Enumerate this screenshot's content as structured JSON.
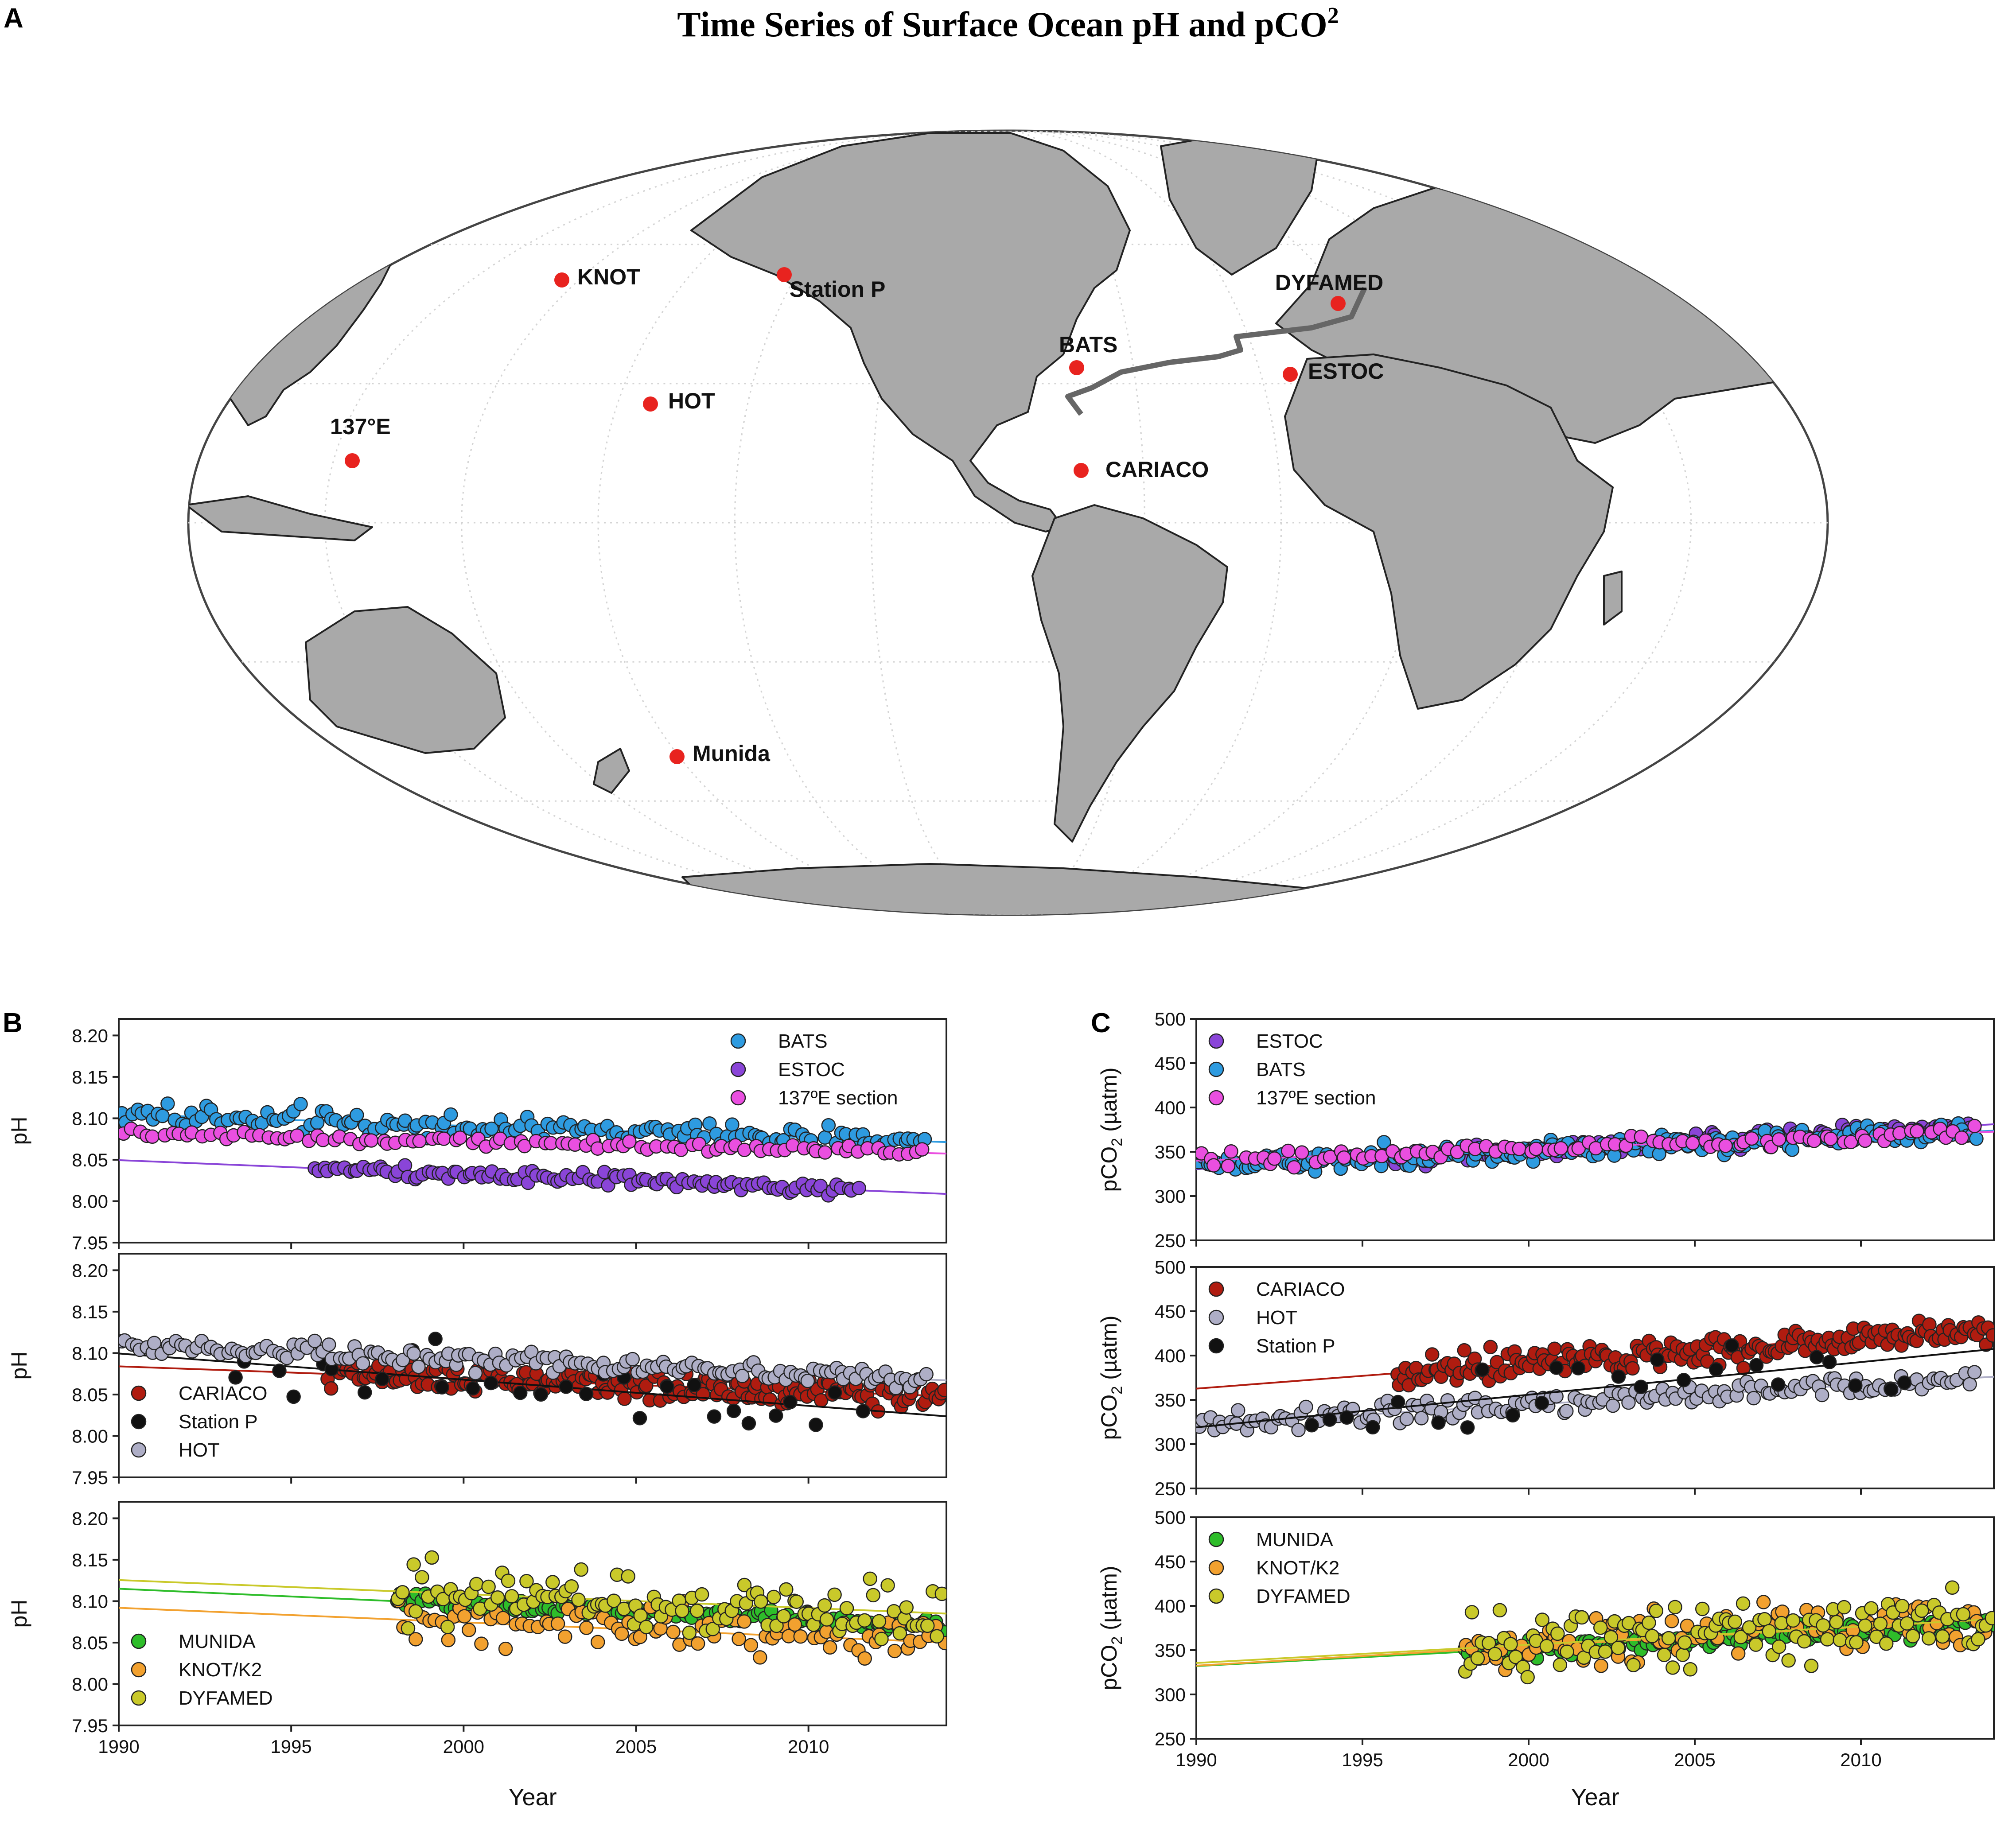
{
  "figure": {
    "title": "Time Series of Surface Ocean pH and pCO",
    "title_superscript": "2",
    "panel_labels": {
      "a": "A",
      "b": "B",
      "c": "C"
    }
  },
  "map": {
    "land_color": "#a9a9a9",
    "station_color": "#e8231f",
    "stations": [
      {
        "name": "KNOT",
        "lon": 155,
        "lat": 44
      },
      {
        "name": "Station P",
        "lon": -145,
        "lat": 50
      },
      {
        "name": "DYFAMED",
        "lon": 7.9,
        "lat": 43.4
      },
      {
        "name": "BATS",
        "lon": -64,
        "lat": 31.7
      },
      {
        "name": "HOT",
        "lon": -158,
        "lat": 22.75
      },
      {
        "name": "ESTOC",
        "lon": -15.5,
        "lat": 29.2
      },
      {
        "name": "137°E",
        "lon": 137,
        "lat": 15
      },
      {
        "name": "CARIACO",
        "lon": -64.7,
        "lat": 10.5
      },
      {
        "name": "Munida",
        "lon": 171,
        "lat": -45.8
      }
    ]
  },
  "colors": {
    "BATS": "#2e9be0",
    "ESTOC": "#8a45d8",
    "137E": "#ea4fe0",
    "CARIACO": "#b01c10",
    "StationP": "#111111",
    "HOT": "#aeaec6",
    "MUNIDA": "#2ebd2a",
    "KNOT": "#f2a12f",
    "DYFAMED": "#c9c92a"
  },
  "axis_labels": {
    "ph": "pH",
    "pco2": "pCO",
    "pco2_sub": "2",
    "pco2_unit": " (µatm)",
    "year": "Year"
  },
  "chart_data": [
    {
      "panel": "B",
      "type": "scatter",
      "xlabel": "Year",
      "ylabel": "pH",
      "xlim": [
        1990,
        2014
      ],
      "xticks": [
        1990,
        1995,
        2000,
        2005,
        2010
      ],
      "subplots": [
        {
          "ylim": [
            7.95,
            8.22
          ],
          "yticks": [
            7.95,
            8.0,
            8.05,
            8.1,
            8.15,
            8.2
          ],
          "legend_position": "top-right",
          "series": [
            {
              "name": "BATS",
              "color_key": "BATS",
              "x_range": [
                1990,
                2013.5
              ],
              "trend": [
                8.105,
                8.072
              ],
              "noise": 0.013,
              "n": 150
            },
            {
              "name": "ESTOC",
              "color_key": "ESTOC",
              "x_range": [
                1995.6,
                2011.5
              ],
              "trend": [
                8.04,
                8.013
              ],
              "noise": 0.007,
              "n": 110
            },
            {
              "name": "137ºE section",
              "color_key": "137E",
              "x_range": [
                1990,
                2013.5
              ],
              "trend": [
                8.083,
                8.058
              ],
              "noise": 0.007,
              "n": 100
            }
          ]
        },
        {
          "ylim": [
            7.95,
            8.22
          ],
          "yticks": [
            7.95,
            8.0,
            8.05,
            8.1,
            8.15,
            8.2
          ],
          "legend_position": "bottom-left",
          "series": [
            {
              "name": "CARIACO",
              "color_key": "CARIACO",
              "x_range": [
                1996,
                2014
              ],
              "trend": [
                8.075,
                8.048
              ],
              "noise": 0.016,
              "n": 190
            },
            {
              "name": "Station P",
              "color_key": "StationP",
              "x_range": [
                1993,
                2012
              ],
              "trend": [
                8.09,
                8.03
              ],
              "noise": 0.035,
              "n": 30
            },
            {
              "name": "HOT",
              "color_key": "HOT",
              "x_range": [
                1990,
                2013.5
              ],
              "trend": [
                8.112,
                8.068
              ],
              "noise": 0.011,
              "n": 160
            }
          ]
        },
        {
          "ylim": [
            7.95,
            8.22
          ],
          "yticks": [
            7.95,
            8.0,
            8.05,
            8.1,
            8.15,
            8.2
          ],
          "legend_position": "bottom-left",
          "series": [
            {
              "name": "MUNIDA",
              "color_key": "MUNIDA",
              "x_range": [
                1998,
                2014
              ],
              "trend": [
                8.1,
                8.07
              ],
              "noise": 0.008,
              "n": 130
            },
            {
              "name": "KNOT/K2",
              "color_key": "KNOT",
              "x_range": [
                1998,
                2014
              ],
              "trend": [
                8.078,
                8.05
              ],
              "noise": 0.03,
              "n": 90
            },
            {
              "name": "DYFAMED",
              "color_key": "DYFAMED",
              "x_range": [
                1998,
                2014
              ],
              "trend": [
                8.112,
                8.085
              ],
              "noise": 0.035,
              "n": 110
            }
          ]
        }
      ]
    },
    {
      "panel": "C",
      "type": "scatter",
      "xlabel": "Year",
      "ylabel": "pCO2 (µatm)",
      "xlim": [
        1990,
        2014
      ],
      "xticks": [
        1990,
        1995,
        2000,
        2005,
        2010
      ],
      "subplots": [
        {
          "ylim": [
            250,
            500
          ],
          "yticks": [
            250,
            300,
            350,
            400,
            450,
            500
          ],
          "legend_position": "top-left",
          "series": [
            {
              "name": "ESTOC",
              "color_key": "ESTOC",
              "x_range": [
                1995.5,
                2013.5
              ],
              "trend": [
                342,
                380
              ],
              "noise": 9,
              "n": 150
            },
            {
              "name": "BATS",
              "color_key": "BATS",
              "x_range": [
                1990,
                2013.5
              ],
              "trend": [
                335,
                373
              ],
              "noise": 12,
              "n": 180
            },
            {
              "name": "137ºE section",
              "color_key": "137E",
              "x_range": [
                1990,
                2013.5
              ],
              "trend": [
                340,
                372
              ],
              "noise": 8,
              "n": 90
            }
          ]
        },
        {
          "ylim": [
            250,
            500
          ],
          "yticks": [
            250,
            300,
            350,
            400,
            450,
            500
          ],
          "legend_position": "top-left",
          "series": [
            {
              "name": "CARIACO",
              "color_key": "CARIACO",
              "x_range": [
                1996,
                2014
              ],
              "trend": [
                380,
                432
              ],
              "noise": 18,
              "n": 190
            },
            {
              "name": "HOT",
              "color_key": "HOT",
              "x_range": [
                1990,
                2013.5
              ],
              "trend": [
                322,
                375
              ],
              "noise": 12,
              "n": 150
            },
            {
              "name": "Station P",
              "color_key": "StationP",
              "x_range": [
                1993,
                2012
              ],
              "trend": [
                330,
                400
              ],
              "noise": 30,
              "n": 25
            }
          ]
        },
        {
          "ylim": [
            250,
            500
          ],
          "yticks": [
            250,
            300,
            350,
            400,
            450,
            500
          ],
          "legend_position": "top-left",
          "series": [
            {
              "name": "MUNIDA",
              "color_key": "MUNIDA",
              "x_range": [
                1998,
                2014
              ],
              "trend": [
                348,
                380
              ],
              "noise": 10,
              "n": 130
            },
            {
              "name": "KNOT/K2",
              "color_key": "KNOT",
              "x_range": [
                1998,
                2014
              ],
              "trend": [
                350,
                385
              ],
              "noise": 30,
              "n": 90
            },
            {
              "name": "DYFAMED",
              "color_key": "DYFAMED",
              "x_range": [
                1998,
                2014
              ],
              "trend": [
                352,
                385
              ],
              "noise": 32,
              "n": 110
            }
          ]
        }
      ]
    }
  ]
}
